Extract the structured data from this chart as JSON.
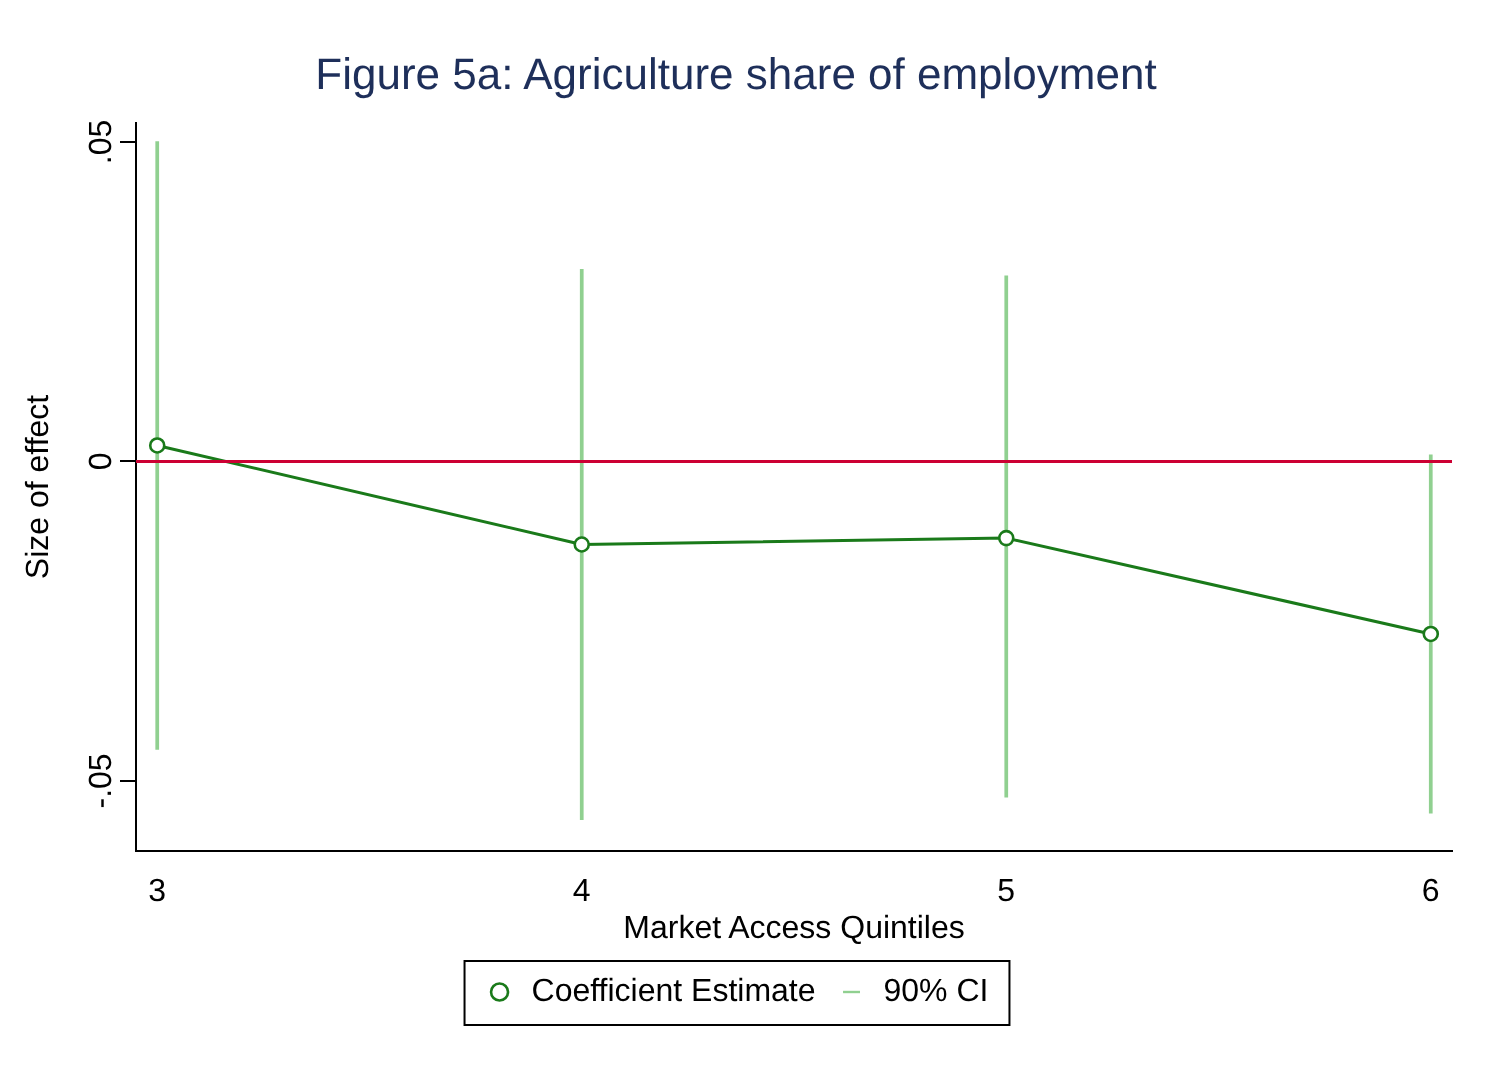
{
  "chart_data": {
    "type": "line",
    "title": "Figure 5a: Agriculture share of employment",
    "xlabel": "Market Access Quintiles",
    "ylabel": "Size of effect",
    "x": [
      3,
      4,
      5,
      6
    ],
    "series": [
      {
        "name": "Coefficient Estimate",
        "color": "#1a7a1a",
        "values": [
          0.0025,
          -0.013,
          -0.012,
          -0.027
        ]
      },
      {
        "name": "90% CI",
        "type": "bar",
        "color": "#90d090",
        "base": [
          -0.045,
          -0.056,
          -0.0525,
          -0.055
        ],
        "values": [
          0.095,
          0.086,
          0.0815,
          0.056
        ]
      }
    ],
    "marker": "circle",
    "xlim": [
      2.95,
      6.05
    ],
    "xticks": [
      3,
      4,
      5,
      6
    ],
    "ylim": [
      -0.061,
      0.053
    ],
    "yticks": [
      {
        "value": -0.05,
        "label": "-.05"
      },
      {
        "value": 0,
        "label": "0"
      },
      {
        "value": 0.05,
        "label": ".05"
      }
    ],
    "ref_lines": [
      {
        "axis": "y",
        "value": 0,
        "color": "#cc0033"
      }
    ],
    "grid": false,
    "legend": "bottom"
  }
}
